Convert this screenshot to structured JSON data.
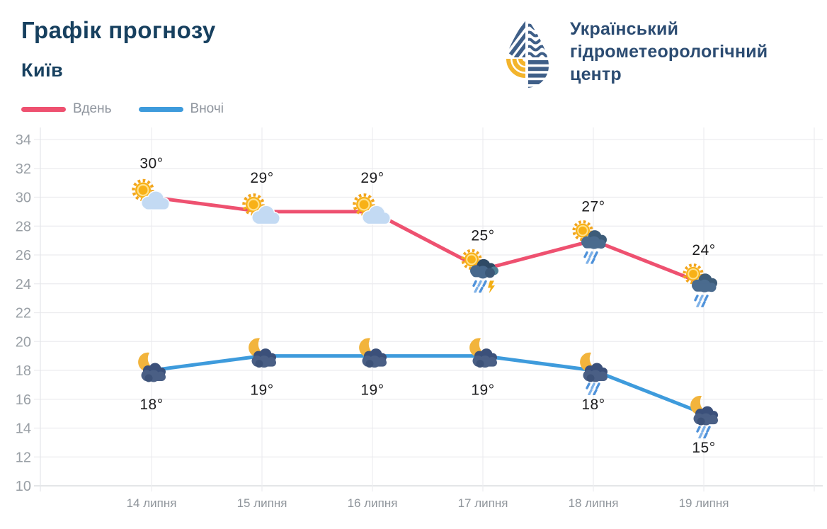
{
  "header": {
    "title": "Графік прогнозу",
    "city": "Київ"
  },
  "logo": {
    "line1": "Український",
    "line2": "гідрометеорологічний",
    "line3": "центр"
  },
  "legend": {
    "items": [
      {
        "label": "Вдень",
        "color": "#ee5170"
      },
      {
        "label": "Вночі",
        "color": "#3e9bdc"
      }
    ]
  },
  "colors": {
    "day_line": "#ee5170",
    "night_line": "#3e9bdc",
    "title_text": "#17405f",
    "logo_text": "#2c4c72",
    "axis_text": "#9aa0a6",
    "grid_line": "#ececef",
    "moon_yellow": "#f2b43c",
    "sun_yellow": "#f8b117",
    "rain_blue": "#4f92da"
  },
  "chart_data": {
    "type": "line",
    "title": "Графік прогнозу",
    "subtitle": "Київ",
    "categories": [
      "14 липня",
      "15 липня",
      "16 липня",
      "17 липня",
      "18 липня",
      "19 липня"
    ],
    "series": [
      {
        "name": "Вдень",
        "color": "#ee5170",
        "values": [
          30,
          29,
          29,
          25,
          27,
          24
        ],
        "point_labels": [
          "30°",
          "29°",
          "29°",
          "25°",
          "27°",
          "24°"
        ],
        "icons": [
          "sun-cloud",
          "sun-cloud",
          "sun-cloud",
          "sun-storm",
          "sun-rain",
          "sun-rain"
        ],
        "label_side": "above"
      },
      {
        "name": "Вночі",
        "color": "#3e9bdc",
        "values": [
          18,
          19,
          19,
          19,
          18,
          15
        ],
        "point_labels": [
          "18°",
          "19°",
          "19°",
          "19°",
          "18°",
          "15°"
        ],
        "icons": [
          "moon-cloud",
          "moon-cloud",
          "moon-cloud",
          "moon-cloud",
          "moon-rain",
          "moon-rain"
        ],
        "label_side": "below"
      }
    ],
    "xlabel": "",
    "ylabel": "",
    "ylim": [
      10,
      34
    ],
    "yticks": [
      34,
      32,
      30,
      28,
      26,
      24,
      22,
      20,
      18,
      16,
      14,
      12,
      10
    ],
    "grid": true,
    "legend_position": "top-left"
  }
}
